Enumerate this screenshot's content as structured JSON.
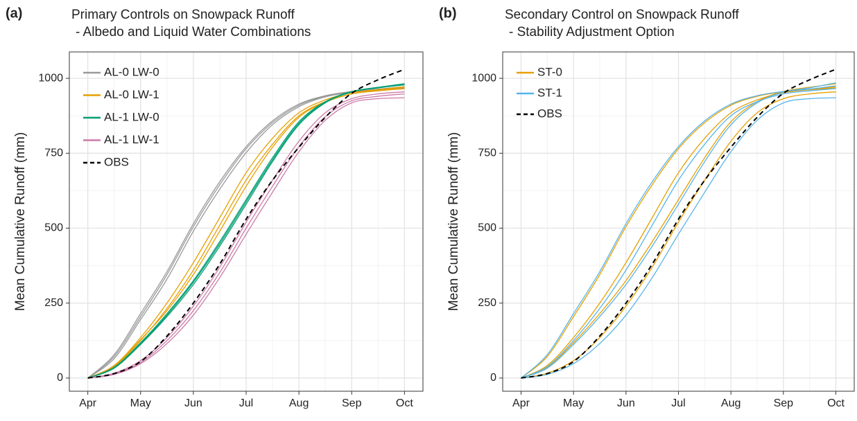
{
  "chart_data": [
    {
      "type": "line",
      "panel_label": "(a)",
      "title": "Primary Controls on Snowpack Runoff",
      "subtitle": "- Albedo and Liquid Water Combinations",
      "y_label": "Mean Cumulative Runoff (mm)",
      "categories": [
        "Apr",
        null,
        "May",
        null,
        "Jun",
        null,
        "Jul",
        null,
        "Aug",
        null,
        "Sep",
        null,
        "Oct"
      ],
      "ylim": [
        -44,
        1088
      ],
      "yticks": [
        0,
        250,
        500,
        750,
        1000
      ],
      "grid": true,
      "legend": "top-left",
      "series": [
        {
          "name": "AL-0 LW-0",
          "color": "#999999",
          "members": [
            [
              0,
              72,
              205,
              345,
              505,
              645,
              765,
              852,
              910,
              940,
              955,
              962,
              968
            ],
            [
              0,
              65,
              195,
              330,
              490,
              630,
              752,
              845,
              905,
              938,
              953,
              960,
              965
            ],
            [
              0,
              78,
              215,
              355,
              515,
              655,
              772,
              858,
              914,
              942,
              956,
              964,
              972
            ]
          ]
        },
        {
          "name": "AL-0 LW-1",
          "color": "#E69F00",
          "members": [
            [
              0,
              42,
              135,
              250,
              385,
              535,
              685,
              800,
              885,
              928,
              952,
              962,
              972
            ],
            [
              0,
              38,
              125,
              232,
              360,
              510,
              660,
              780,
              875,
              922,
              948,
              958,
              966
            ],
            [
              0,
              40,
              128,
              225,
              345,
              490,
              640,
              770,
              870,
              920,
              948,
              960,
              970
            ]
          ]
        },
        {
          "name": "AL-1 LW-0",
          "color": "#009E73",
          "members": [
            [
              0,
              36,
              118,
              215,
              325,
              455,
              595,
              735,
              855,
              922,
              956,
              970,
              982
            ],
            [
              0,
              33,
              112,
              205,
              312,
              440,
              580,
              722,
              845,
              918,
              954,
              968,
              978
            ],
            [
              0,
              35,
              115,
              210,
              320,
              448,
              588,
              728,
              850,
              920,
              955,
              969,
              980
            ]
          ]
        },
        {
          "name": "AL-1 LW-1",
          "color": "#CC79A7",
          "members": [
            [
              0,
              16,
              58,
              135,
              240,
              370,
              520,
              660,
              790,
              885,
              932,
              948,
              955
            ],
            [
              0,
              14,
              52,
              125,
              225,
              352,
              500,
              640,
              772,
              872,
              925,
              940,
              948
            ],
            [
              0,
              12,
              48,
              115,
              210,
              335,
              480,
              620,
              755,
              860,
              918,
              932,
              935
            ]
          ]
        },
        {
          "name": "OBS",
          "color": "#000000",
          "dash": true,
          "members": [
            [
              0,
              15,
              55,
              140,
              250,
              380,
              530,
              660,
              770,
              870,
              950,
              995,
              1030
            ]
          ]
        }
      ]
    },
    {
      "type": "line",
      "panel_label": "(b)",
      "title": "Secondary Control on Snowpack Runoff",
      "subtitle": "- Stability Adjustment Option",
      "y_label": "Mean Cumulative Runoff (mm)",
      "categories": [
        "Apr",
        null,
        "May",
        null,
        "Jun",
        null,
        "Jul",
        null,
        "Aug",
        null,
        "Sep",
        null,
        "Oct"
      ],
      "ylim": [
        -44,
        1088
      ],
      "yticks": [
        0,
        250,
        500,
        750,
        1000
      ],
      "grid": true,
      "legend": "top-left",
      "series": [
        {
          "name": "ST-0",
          "color": "#E69F00",
          "members": [
            [
              0,
              72,
              205,
              345,
              505,
              645,
              765,
              852,
              910,
              940,
              955,
              962,
              968
            ],
            [
              0,
              42,
              135,
              250,
              385,
              535,
              685,
              800,
              885,
              928,
              952,
              962,
              972
            ],
            [
              0,
              36,
              118,
              215,
              325,
              455,
              595,
              735,
              855,
              922,
              956,
              970,
              982
            ],
            [
              0,
              16,
              58,
              135,
              240,
              370,
              520,
              660,
              790,
              885,
              932,
              948,
              955
            ]
          ]
        },
        {
          "name": "ST-1",
          "color": "#56B4E9",
          "members": [
            [
              0,
              78,
              215,
              355,
              515,
              655,
              772,
              858,
              914,
              942,
              956,
              964,
              975
            ],
            [
              0,
              38,
              125,
              232,
              360,
              510,
              660,
              780,
              875,
              922,
              948,
              958,
              966
            ],
            [
              0,
              33,
              112,
              205,
              312,
              440,
              580,
              722,
              845,
              918,
              954,
              968,
              985
            ],
            [
              0,
              12,
              48,
              115,
              210,
              335,
              480,
              620,
              755,
              860,
              918,
              932,
              935
            ]
          ]
        },
        {
          "name": "OBS",
          "color": "#000000",
          "dash": true,
          "members": [
            [
              0,
              15,
              55,
              140,
              250,
              380,
              530,
              660,
              770,
              870,
              950,
              995,
              1030
            ]
          ]
        }
      ]
    }
  ]
}
